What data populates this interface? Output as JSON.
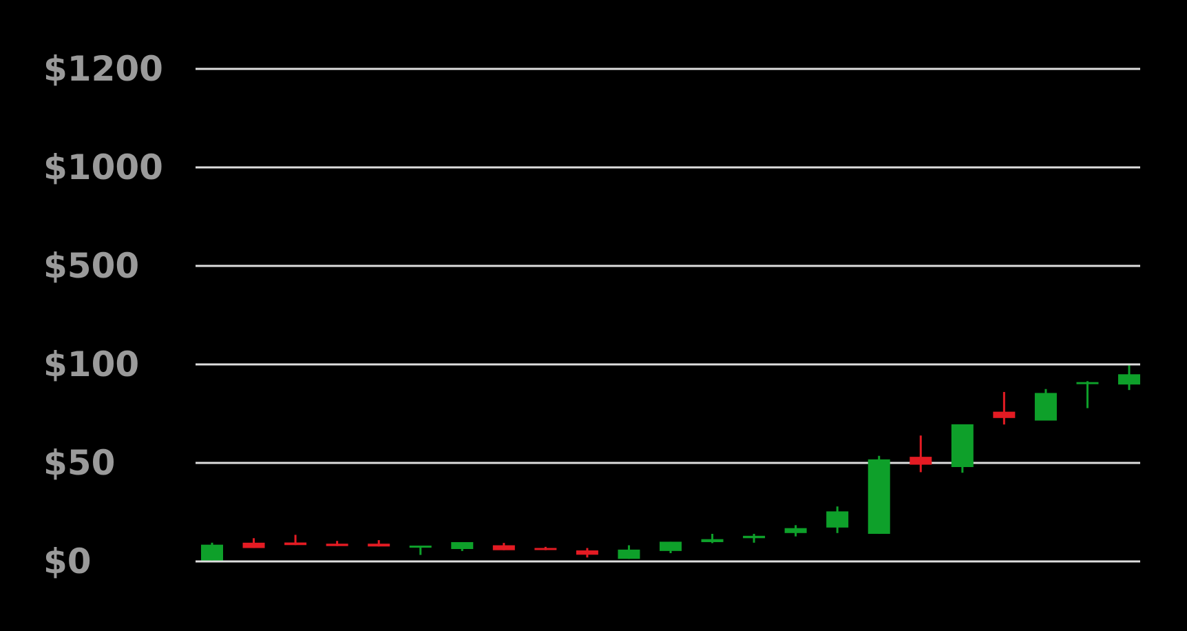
{
  "chart_data": {
    "type": "candlestick",
    "title": "",
    "xlabel": "",
    "ylabel": "",
    "grid": true,
    "colors": {
      "up": "#0ea02a",
      "down": "#e41b23",
      "grid": "#dedede",
      "tick_label": "#9a9a9a",
      "background": "#000000"
    },
    "y_ticks": [
      {
        "label": "$0",
        "value": 0
      },
      {
        "label": "$50",
        "value": 50
      },
      {
        "label": "$100",
        "value": 100
      },
      {
        "label": "$500",
        "value": 500
      },
      {
        "label": "$1000",
        "value": 1000
      },
      {
        "label": "$1200",
        "value": 1200
      }
    ],
    "candles": [
      {
        "open": 0.5,
        "close": 8.5,
        "high": 9.5,
        "low": 0.5
      },
      {
        "open": 9.5,
        "close": 6.8,
        "high": 11.8,
        "low": 6.8
      },
      {
        "open": 9.6,
        "close": 8.3,
        "high": 13.5,
        "low": 8.3
      },
      {
        "open": 9.0,
        "close": 7.8,
        "high": 10.4,
        "low": 7.8
      },
      {
        "open": 9.0,
        "close": 7.6,
        "high": 10.8,
        "low": 7.6
      },
      {
        "open": 7.1,
        "close": 7.5,
        "high": 7.5,
        "low": 3.3
      },
      {
        "open": 6.3,
        "close": 9.8,
        "high": 9.8,
        "low": 5.3
      },
      {
        "open": 8.2,
        "close": 5.7,
        "high": 9.4,
        "low": 5.7
      },
      {
        "open": 6.3,
        "close": 5.7,
        "high": 7.4,
        "low": 5.7
      },
      {
        "open": 5.6,
        "close": 3.4,
        "high": 6.8,
        "low": 2.0
      },
      {
        "open": 1.3,
        "close": 6.0,
        "high": 8.2,
        "low": 1.3
      },
      {
        "open": 5.3,
        "close": 10.0,
        "high": 10.0,
        "low": 4.2
      },
      {
        "open": 9.8,
        "close": 11.3,
        "high": 14.0,
        "low": 9.3
      },
      {
        "open": 11.8,
        "close": 13.0,
        "high": 14.0,
        "low": 9.5
      },
      {
        "open": 14.4,
        "close": 16.9,
        "high": 18.4,
        "low": 12.7
      },
      {
        "open": 17.2,
        "close": 25.4,
        "high": 27.9,
        "low": 14.4
      },
      {
        "open": 14.0,
        "close": 51.8,
        "high": 53.6,
        "low": 14.0
      },
      {
        "open": 53.1,
        "close": 49.1,
        "high": 63.9,
        "low": 45.3
      },
      {
        "open": 47.9,
        "close": 69.6,
        "high": 69.6,
        "low": 45.0
      },
      {
        "open": 76.0,
        "close": 72.8,
        "high": 86.0,
        "low": 69.5
      },
      {
        "open": 71.5,
        "close": 85.5,
        "high": 87.5,
        "low": 71.5
      },
      {
        "open": 90.5,
        "close": 90.5,
        "high": 91.5,
        "low": 77.8
      },
      {
        "open": 89.8,
        "close": 95.0,
        "high": 99.5,
        "low": 87.0
      }
    ]
  }
}
